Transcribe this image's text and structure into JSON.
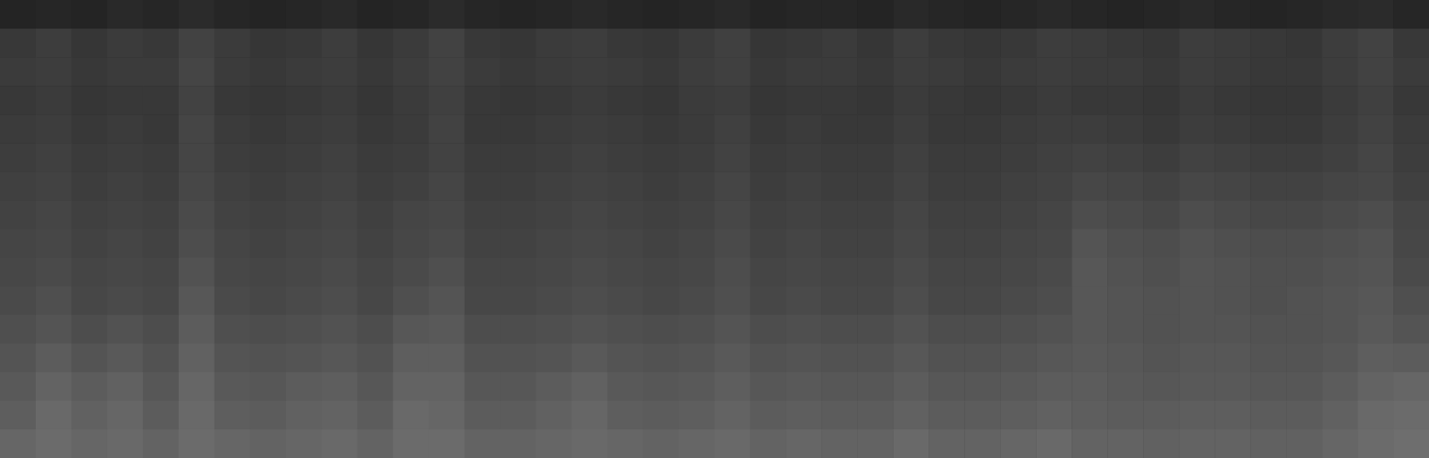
{
  "chart_data": {
    "type": "heatmap",
    "tick_labels": false,
    "grid": false,
    "color": "#ffffff",
    "clim": [
      0,
      100
    ],
    "cells": [
      [
        14,
        15,
        14,
        16,
        15,
        17,
        15,
        14,
        15,
        16,
        14,
        15,
        17,
        15,
        14,
        15,
        16,
        15,
        14,
        15,
        16,
        14,
        15,
        15,
        14,
        16,
        15,
        14,
        15,
        16,
        15,
        14,
        15,
        16,
        15,
        14,
        15,
        16,
        17,
        15
      ],
      [
        22,
        24,
        21,
        23,
        22,
        26,
        23,
        21,
        22,
        24,
        21,
        23,
        26,
        22,
        21,
        23,
        24,
        22,
        21,
        23,
        25,
        21,
        22,
        23,
        21,
        24,
        22,
        21,
        22,
        24,
        23,
        22,
        21,
        24,
        23,
        22,
        21,
        24,
        26,
        22
      ],
      [
        23,
        24,
        22,
        23,
        23,
        27,
        23,
        22,
        23,
        24,
        22,
        24,
        26,
        23,
        22,
        23,
        24,
        23,
        22,
        24,
        25,
        22,
        23,
        23,
        22,
        24,
        23,
        22,
        23,
        24,
        23,
        23,
        22,
        24,
        23,
        22,
        22,
        24,
        26,
        23
      ],
      [
        22,
        23,
        21,
        22,
        22,
        26,
        22,
        21,
        22,
        23,
        21,
        23,
        25,
        22,
        21,
        22,
        23,
        22,
        21,
        23,
        24,
        21,
        22,
        22,
        21,
        23,
        22,
        21,
        22,
        23,
        22,
        22,
        21,
        23,
        22,
        21,
        21,
        23,
        25,
        22
      ],
      [
        23,
        24,
        22,
        23,
        22,
        27,
        23,
        22,
        23,
        24,
        22,
        23,
        26,
        22,
        22,
        23,
        24,
        23,
        22,
        23,
        25,
        22,
        23,
        22,
        22,
        24,
        22,
        22,
        23,
        24,
        24,
        23,
        22,
        24,
        23,
        22,
        22,
        24,
        26,
        23
      ],
      [
        24,
        25,
        23,
        24,
        23,
        27,
        24,
        23,
        24,
        25,
        23,
        24,
        26,
        23,
        23,
        24,
        25,
        24,
        23,
        24,
        26,
        23,
        24,
        23,
        23,
        25,
        23,
        23,
        24,
        25,
        26,
        25,
        24,
        26,
        25,
        24,
        24,
        25,
        27,
        24
      ],
      [
        25,
        26,
        24,
        25,
        24,
        28,
        25,
        24,
        25,
        26,
        24,
        25,
        27,
        24,
        24,
        25,
        26,
        25,
        24,
        25,
        27,
        24,
        25,
        24,
        24,
        26,
        24,
        24,
        25,
        26,
        28,
        27,
        26,
        28,
        27,
        26,
        26,
        27,
        28,
        25
      ],
      [
        26,
        27,
        25,
        26,
        25,
        29,
        26,
        25,
        26,
        27,
        25,
        27,
        28,
        25,
        25,
        26,
        27,
        26,
        25,
        26,
        28,
        25,
        26,
        25,
        25,
        27,
        25,
        25,
        26,
        27,
        30,
        29,
        28,
        30,
        29,
        28,
        28,
        29,
        30,
        27
      ],
      [
        27,
        28,
        26,
        27,
        26,
        30,
        27,
        26,
        27,
        28,
        26,
        28,
        29,
        26,
        26,
        27,
        28,
        27,
        26,
        27,
        29,
        26,
        27,
        26,
        26,
        28,
        26,
        26,
        27,
        28,
        33,
        31,
        30,
        32,
        31,
        30,
        30,
        31,
        32,
        28
      ],
      [
        28,
        29,
        27,
        28,
        27,
        32,
        28,
        27,
        28,
        29,
        27,
        29,
        31,
        27,
        27,
        28,
        29,
        28,
        27,
        28,
        30,
        27,
        28,
        27,
        27,
        29,
        27,
        27,
        28,
        29,
        34,
        32,
        31,
        33,
        32,
        31,
        31,
        32,
        33,
        29
      ],
      [
        29,
        31,
        28,
        29,
        28,
        34,
        29,
        28,
        29,
        30,
        28,
        31,
        33,
        28,
        28,
        29,
        30,
        29,
        28,
        29,
        31,
        28,
        29,
        28,
        28,
        30,
        28,
        28,
        29,
        30,
        34,
        33,
        32,
        33,
        32,
        31,
        32,
        33,
        34,
        31
      ],
      [
        31,
        33,
        30,
        32,
        30,
        36,
        31,
        30,
        31,
        32,
        30,
        34,
        35,
        30,
        30,
        31,
        32,
        31,
        30,
        31,
        33,
        30,
        31,
        30,
        30,
        32,
        30,
        30,
        31,
        32,
        34,
        33,
        32,
        33,
        33,
        32,
        32,
        33,
        35,
        33
      ],
      [
        33,
        36,
        33,
        35,
        32,
        38,
        33,
        32,
        33,
        34,
        32,
        37,
        37,
        32,
        32,
        33,
        35,
        33,
        32,
        33,
        35,
        32,
        33,
        32,
        32,
        34,
        32,
        32,
        33,
        34,
        35,
        34,
        33,
        34,
        34,
        33,
        33,
        34,
        37,
        36
      ],
      [
        35,
        39,
        36,
        38,
        34,
        40,
        35,
        34,
        36,
        37,
        34,
        39,
        39,
        34,
        34,
        36,
        38,
        35,
        34,
        35,
        37,
        34,
        35,
        34,
        34,
        36,
        34,
        34,
        35,
        36,
        36,
        35,
        34,
        35,
        35,
        34,
        34,
        36,
        39,
        40
      ],
      [
        37,
        41,
        38,
        40,
        36,
        41,
        37,
        36,
        38,
        39,
        36,
        41,
        40,
        36,
        36,
        38,
        40,
        37,
        36,
        37,
        39,
        36,
        37,
        36,
        36,
        38,
        36,
        36,
        37,
        38,
        37,
        36,
        36,
        37,
        37,
        36,
        36,
        38,
        41,
        42
      ],
      [
        40,
        42,
        40,
        41,
        39,
        42,
        40,
        39,
        40,
        41,
        39,
        42,
        42,
        39,
        39,
        40,
        41,
        40,
        39,
        40,
        41,
        39,
        40,
        39,
        39,
        41,
        39,
        39,
        40,
        41,
        39,
        39,
        38,
        39,
        39,
        38,
        38,
        40,
        42,
        43
      ]
    ]
  }
}
